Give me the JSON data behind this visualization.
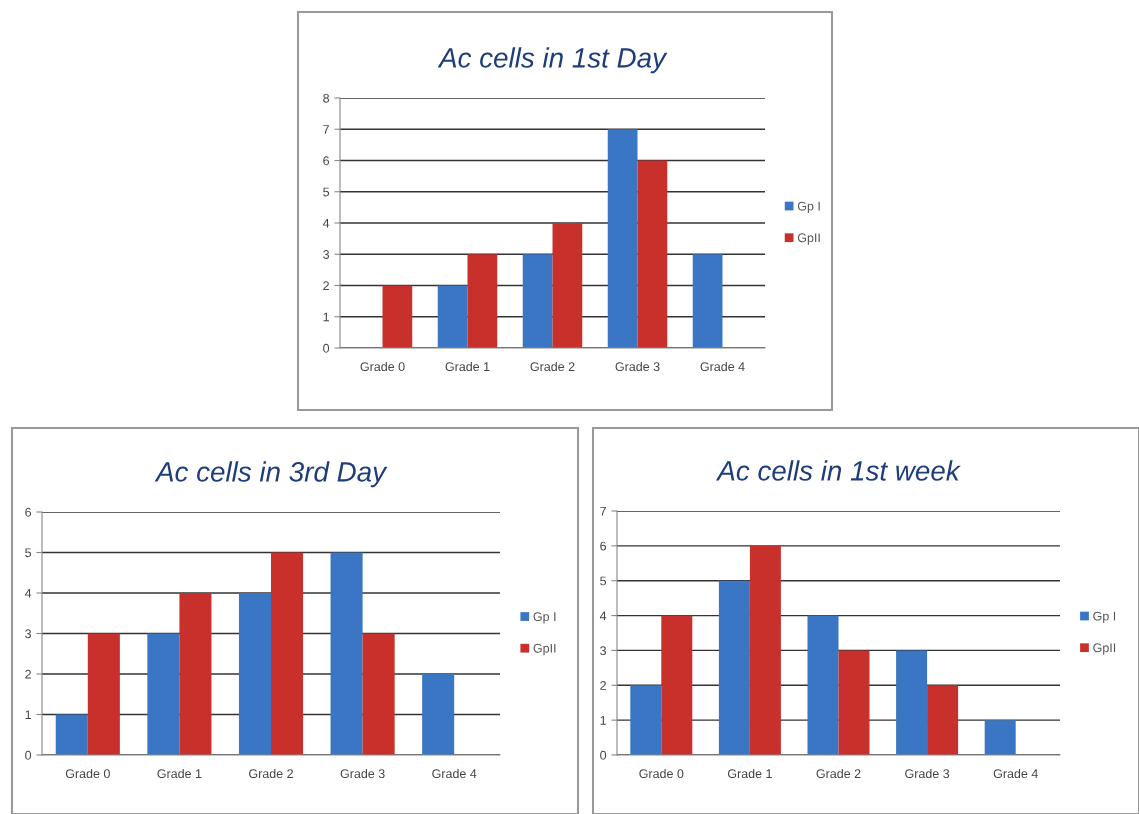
{
  "chart_data": [
    {
      "type": "bar",
      "title": "Ac cells in 1st Day",
      "categories": [
        "Grade 0",
        "Grade 1",
        "Grade 2",
        "Grade 3",
        "Grade 4"
      ],
      "ylim": [
        0,
        8
      ],
      "yticks": [
        0,
        1,
        2,
        3,
        4,
        5,
        6,
        7,
        8
      ],
      "grid": "y",
      "legend": "right",
      "series": [
        {
          "name": "Gp I",
          "color": "#3a76c4",
          "values": [
            0,
            2,
            3,
            7,
            3
          ]
        },
        {
          "name": "GpII",
          "color": "#c8302c",
          "values": [
            2,
            3,
            4,
            6,
            0
          ]
        }
      ]
    },
    {
      "type": "bar",
      "title": "Ac cells in 3rd Day",
      "categories": [
        "Grade 0",
        "Grade 1",
        "Grade 2",
        "Grade 3",
        "Grade 4"
      ],
      "ylim": [
        0,
        6
      ],
      "yticks": [
        0,
        1,
        2,
        3,
        4,
        5,
        6
      ],
      "grid": "y",
      "legend": "right",
      "series": [
        {
          "name": "Gp I",
          "color": "#3a76c4",
          "values": [
            1,
            3,
            4,
            5,
            2
          ]
        },
        {
          "name": "GpII",
          "color": "#c8302c",
          "values": [
            3,
            4,
            5,
            3,
            0
          ]
        }
      ]
    },
    {
      "type": "bar",
      "title": "Ac cells in 1st week",
      "categories": [
        "Grade 0",
        "Grade 1",
        "Grade 2",
        "Grade 3",
        "Grade 4"
      ],
      "ylim": [
        0,
        7
      ],
      "yticks": [
        0,
        1,
        2,
        3,
        4,
        5,
        6,
        7
      ],
      "grid": "y",
      "legend": "right",
      "series": [
        {
          "name": "Gp I",
          "color": "#3a76c4",
          "values": [
            2,
            5,
            4,
            3,
            1
          ]
        },
        {
          "name": "GpII",
          "color": "#c8302c",
          "values": [
            4,
            6,
            3,
            2,
            0
          ]
        }
      ]
    }
  ]
}
